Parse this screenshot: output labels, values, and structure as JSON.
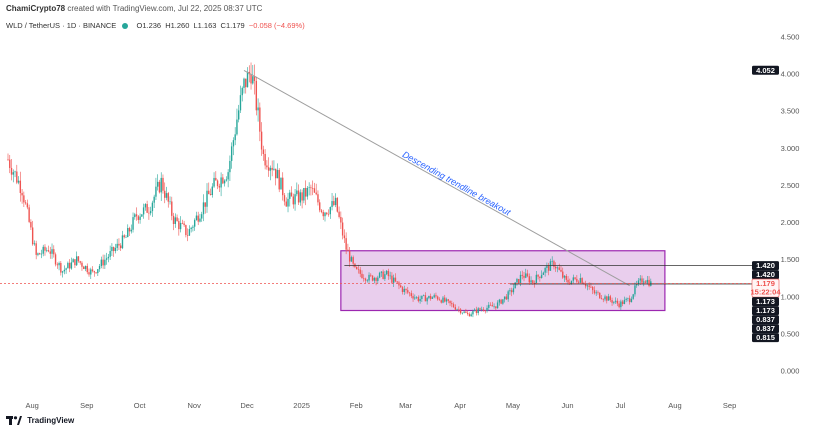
{
  "header": {
    "author": "ChamiCrypto78",
    "created_text": "created with TradingView.com, Jul 22, 2025 08:37 UTC"
  },
  "symbol": {
    "name": "WLD / TetherUS · 1D · BINANCE",
    "open": "O1.236",
    "high": "H1.260",
    "low": "L1.163",
    "close": "C1.179",
    "change": "−0.058 (−4.69%)"
  },
  "footer": {
    "brand": "TradingView"
  },
  "colors": {
    "up": "#26a69a",
    "down": "#ef5350",
    "box_fill": "#e1bee7",
    "box_stroke": "#9c27b0",
    "trendline": "#9e9e9e",
    "annotation": "#2962ff",
    "price_tag": "#131722",
    "current_tag": "#ef5350"
  },
  "chart_data": {
    "type": "candlestick",
    "x_labels": [
      "Aug",
      "Sep",
      "Oct",
      "Nov",
      "Dec",
      "2025",
      "Feb",
      "Mar",
      "Apr",
      "May",
      "Jun",
      "Jul",
      "Aug",
      "Sep"
    ],
    "y_ticks": [
      "0.000",
      "0.500",
      "1.000",
      "1.500",
      "2.000",
      "2.500",
      "3.000",
      "3.500",
      "4.000",
      "4.500"
    ],
    "ylim": [
      -0.1,
      4.6
    ],
    "grid": false,
    "price_tags": [
      {
        "label": "4.052",
        "value": 4.052,
        "style": "dark"
      },
      {
        "label": "1.420",
        "value": 1.42,
        "style": "dark"
      },
      {
        "label": "1.420",
        "value": 1.42,
        "style": "dark"
      },
      {
        "label": "1.179",
        "value": 1.179,
        "style": "current",
        "sub": "15:22:04"
      },
      {
        "label": "1.173",
        "value": 1.173,
        "style": "dark"
      },
      {
        "label": "1.173",
        "value": 1.173,
        "style": "dark"
      },
      {
        "label": "0.837",
        "value": 0.837,
        "style": "dark"
      },
      {
        "label": "0.837",
        "value": 0.837,
        "style": "dark"
      },
      {
        "label": "0.815",
        "value": 0.815,
        "style": "dark"
      }
    ],
    "annotation": "Descending trendline breakout",
    "trendline": {
      "start": [
        "2024-12-01",
        4.05
      ],
      "end": [
        "2025-07-08",
        1.15
      ]
    },
    "range_box": {
      "start": "2025-01-25",
      "end": "2025-07-28",
      "top": 1.62,
      "bottom": 0.815
    },
    "horizontal_lines": [
      {
        "value": 1.42,
        "start": "2025-01-27",
        "end": "2025-09-30"
      },
      {
        "value": 1.173,
        "start": "2025-05-01",
        "end": "2025-09-30"
      }
    ],
    "current_price": 1.179,
    "close_path": [
      [
        "2024-07-20",
        2.85
      ],
      [
        "2024-07-28",
        2.45
      ],
      [
        "2024-08-05",
        1.55
      ],
      [
        "2024-08-12",
        1.65
      ],
      [
        "2024-08-20",
        1.35
      ],
      [
        "2024-08-28",
        1.5
      ],
      [
        "2024-09-06",
        1.32
      ],
      [
        "2024-09-15",
        1.55
      ],
      [
        "2024-09-25",
        1.8
      ],
      [
        "2024-10-01",
        2.1
      ],
      [
        "2024-10-08",
        2.2
      ],
      [
        "2024-10-15",
        2.55
      ],
      [
        "2024-10-22",
        2.05
      ],
      [
        "2024-10-30",
        1.85
      ],
      [
        "2024-11-06",
        2.15
      ],
      [
        "2024-11-14",
        2.5
      ],
      [
        "2024-11-22",
        2.7
      ],
      [
        "2024-11-27",
        3.4
      ],
      [
        "2024-12-01",
        3.85
      ],
      [
        "2024-12-05",
        4.05
      ],
      [
        "2024-12-08",
        3.6
      ],
      [
        "2024-12-12",
        2.9
      ],
      [
        "2024-12-18",
        2.75
      ],
      [
        "2024-12-25",
        2.3
      ],
      [
        "2025-01-03",
        2.35
      ],
      [
        "2025-01-08",
        2.45
      ],
      [
        "2025-01-15",
        2.15
      ],
      [
        "2025-01-22",
        2.25
      ],
      [
        "2025-01-28",
        1.65
      ],
      [
        "2025-02-02",
        1.35
      ],
      [
        "2025-02-10",
        1.25
      ],
      [
        "2025-02-20",
        1.3
      ],
      [
        "2025-03-01",
        1.1
      ],
      [
        "2025-03-10",
        0.97
      ],
      [
        "2025-03-20",
        1.0
      ],
      [
        "2025-03-28",
        0.9
      ],
      [
        "2025-04-07",
        0.76
      ],
      [
        "2025-04-14",
        0.83
      ],
      [
        "2025-04-23",
        0.88
      ],
      [
        "2025-05-01",
        1.05
      ],
      [
        "2025-05-08",
        1.3
      ],
      [
        "2025-05-14",
        1.2
      ],
      [
        "2025-05-20",
        1.35
      ],
      [
        "2025-05-26",
        1.45
      ],
      [
        "2025-06-02",
        1.2
      ],
      [
        "2025-06-10",
        1.25
      ],
      [
        "2025-06-18",
        1.05
      ],
      [
        "2025-06-25",
        0.98
      ],
      [
        "2025-07-02",
        0.9
      ],
      [
        "2025-07-08",
        0.97
      ],
      [
        "2025-07-12",
        1.15
      ],
      [
        "2025-07-16",
        1.25
      ],
      [
        "2025-07-20",
        1.18
      ]
    ]
  }
}
